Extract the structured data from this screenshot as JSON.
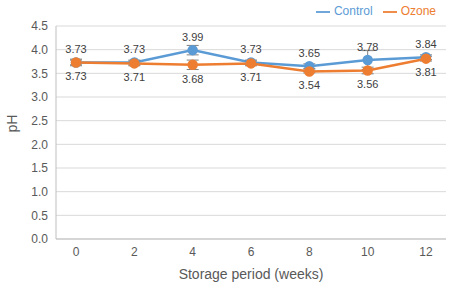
{
  "chart_data": {
    "type": "line",
    "x_label": "Storage period (weeks)",
    "y_label": "pH",
    "categories": [
      "0",
      "2",
      "4",
      "6",
      "8",
      "10",
      "12"
    ],
    "series": [
      {
        "name": "Control",
        "color": "#5b9bd5",
        "marker": "circle",
        "line_style": "solid",
        "values": [
          3.73,
          3.73,
          3.99,
          3.73,
          3.65,
          3.78,
          3.84
        ],
        "errors": [
          0.05,
          0.05,
          0.1,
          0.05,
          0.05,
          0.2,
          0.05
        ]
      },
      {
        "name": "Ozone",
        "color": "#ed7d31",
        "marker": "circle",
        "line_style": "solid",
        "values": [
          3.73,
          3.71,
          3.68,
          3.71,
          3.54,
          3.56,
          3.81
        ],
        "errors": [
          0.07,
          0.05,
          0.1,
          0.05,
          0.03,
          0.07,
          0.05
        ]
      }
    ],
    "ylim": [
      0,
      4.5
    ],
    "yticks": [
      {
        "value": 0,
        "label": "0.0"
      },
      0.5,
      {
        "value": 1,
        "label": "1.0"
      },
      1.5,
      {
        "value": 2,
        "label": "2.0"
      },
      2.5,
      {
        "value": 3,
        "label": "3.0"
      },
      3.5,
      {
        "value": 4,
        "label": "4.0"
      },
      4.5
    ],
    "grid": true,
    "legend": "top",
    "data_labels": true
  }
}
